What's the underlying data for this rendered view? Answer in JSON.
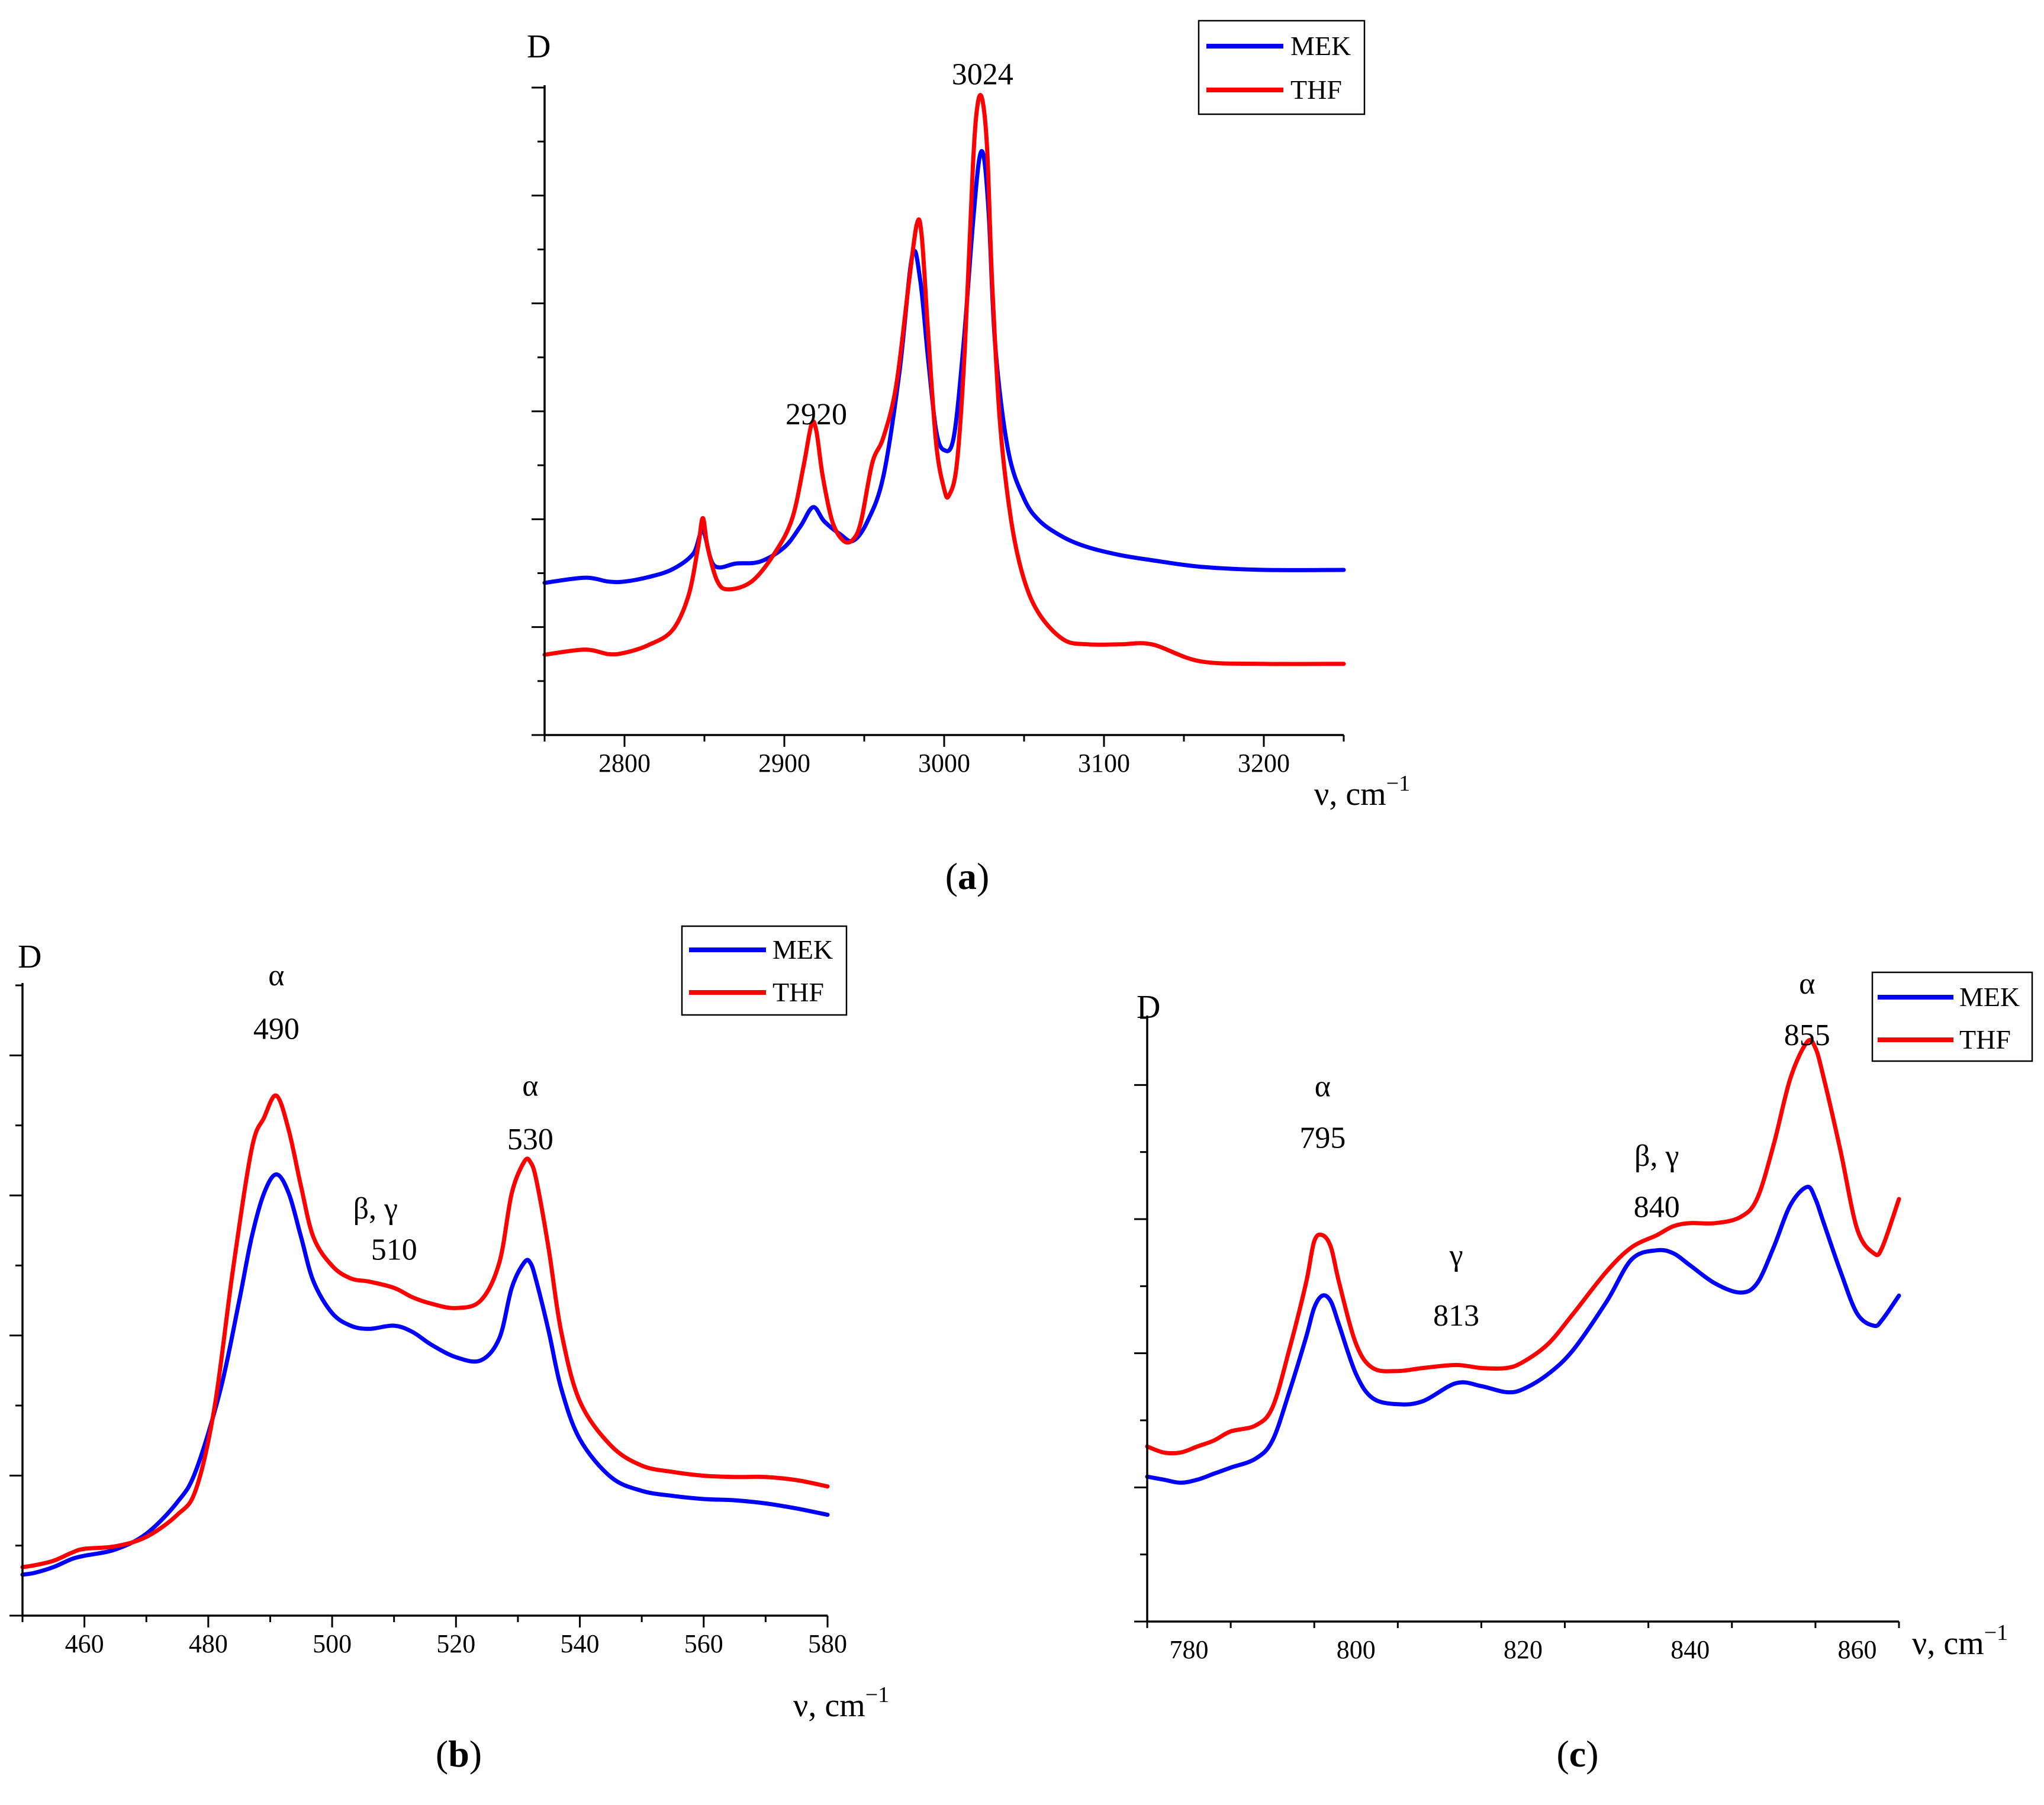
{
  "figure": {
    "caption_a": "(a)",
    "caption_b": "(b)",
    "caption_c": "(c)"
  },
  "colors": {
    "MEK": "#0000ff",
    "THF": "#ff0000",
    "axis": "#000000"
  },
  "chart_data": [
    {
      "id": "a",
      "type": "line",
      "title": "",
      "xlabel": "ν, cm",
      "xlabel_sup": "−1",
      "ylabel": "D",
      "xlim": [
        2750,
        3250
      ],
      "ylim": [
        0,
        1
      ],
      "xticks": [
        2800,
        2900,
        3000,
        3100,
        3200
      ],
      "tick_labels": [
        "2800",
        "2900",
        "3000",
        "3100",
        "3200"
      ],
      "yticks_count": 12,
      "legend": [
        "MEK",
        "THF"
      ],
      "legend_position": "top-right",
      "annotations": [
        {
          "label": "2920",
          "x": 2920,
          "y": 0.48
        },
        {
          "label": "3024",
          "x": 3024,
          "y": 1.005
        }
      ],
      "series": [
        {
          "name": "MEK",
          "x": [
            2750,
            2775,
            2790,
            2800,
            2815,
            2830,
            2843,
            2849,
            2856,
            2870,
            2885,
            2900,
            2910,
            2918,
            2925,
            2935,
            2943,
            2952,
            2962,
            2972,
            2980,
            2985,
            2990,
            2995,
            3000,
            3006,
            3012,
            3018,
            3022,
            3025,
            3028,
            3032,
            3040,
            3050,
            3060,
            3075,
            3090,
            3110,
            3130,
            3160,
            3200,
            3250
          ],
          "y": [
            0.235,
            0.243,
            0.237,
            0.237,
            0.244,
            0.256,
            0.28,
            0.315,
            0.262,
            0.265,
            0.268,
            0.29,
            0.322,
            0.352,
            0.33,
            0.31,
            0.3,
            0.33,
            0.4,
            0.56,
            0.74,
            0.703,
            0.58,
            0.47,
            0.44,
            0.46,
            0.6,
            0.79,
            0.89,
            0.89,
            0.8,
            0.6,
            0.44,
            0.365,
            0.33,
            0.305,
            0.29,
            0.278,
            0.27,
            0.26,
            0.255,
            0.255
          ]
        },
        {
          "name": "THF",
          "x": [
            2750,
            2775,
            2790,
            2800,
            2815,
            2830,
            2840,
            2846,
            2849,
            2852,
            2858,
            2865,
            2880,
            2895,
            2905,
            2912,
            2917,
            2920,
            2924,
            2930,
            2937,
            2943,
            2948,
            2955,
            2962,
            2970,
            2978,
            2983,
            2986,
            2990,
            2995,
            3000,
            3003,
            3008,
            3013,
            3018,
            3021,
            3024,
            3027,
            3030,
            3035,
            3042,
            3050,
            3060,
            3075,
            3090,
            3110,
            3130,
            3160,
            3200,
            3250
          ],
          "y": [
            0.124,
            0.132,
            0.125,
            0.127,
            0.139,
            0.162,
            0.215,
            0.29,
            0.335,
            0.29,
            0.238,
            0.225,
            0.238,
            0.285,
            0.335,
            0.415,
            0.48,
            0.47,
            0.4,
            0.33,
            0.3,
            0.302,
            0.33,
            0.42,
            0.46,
            0.54,
            0.7,
            0.79,
            0.77,
            0.62,
            0.45,
            0.38,
            0.37,
            0.42,
            0.6,
            0.88,
            0.975,
            0.98,
            0.9,
            0.7,
            0.48,
            0.33,
            0.24,
            0.185,
            0.147,
            0.14,
            0.14,
            0.14,
            0.114,
            0.11,
            0.11
          ]
        }
      ]
    },
    {
      "id": "b",
      "type": "line",
      "title": "",
      "xlabel": "ν, cm",
      "xlabel_sup": "−1",
      "ylabel": "D",
      "xlim": [
        450,
        580
      ],
      "ylim": [
        0,
        1
      ],
      "xticks": [
        460,
        480,
        500,
        520,
        540,
        560,
        580
      ],
      "tick_labels": [
        "460",
        "480",
        "500",
        "520",
        "540",
        "560",
        "580"
      ],
      "yticks_count": 9,
      "legend": [
        "MEK",
        "THF"
      ],
      "legend_position": "top-right",
      "annotations": [
        {
          "label": "α",
          "x": 491,
          "y": 1.0
        },
        {
          "label": "490",
          "x": 491,
          "y": 0.915
        },
        {
          "label": "β, γ",
          "x": 507,
          "y": 0.63
        },
        {
          "label": "510",
          "x": 510,
          "y": 0.565
        },
        {
          "label": "α",
          "x": 532,
          "y": 0.825
        },
        {
          "label": "530",
          "x": 532,
          "y": 0.74
        }
      ],
      "series": [
        {
          "name": "MEK",
          "x": [
            450,
            452,
            455,
            458,
            460,
            465,
            470,
            475,
            478,
            482,
            485,
            487,
            489,
            491,
            493,
            495,
            497,
            500,
            503,
            506,
            510,
            513,
            516,
            520,
            524,
            527,
            529,
            531,
            532,
            533,
            535,
            537,
            540,
            545,
            550,
            555,
            560,
            565,
            570,
            575,
            580
          ],
          "y": [
            0.065,
            0.068,
            0.077,
            0.09,
            0.095,
            0.105,
            0.13,
            0.18,
            0.23,
            0.36,
            0.5,
            0.6,
            0.67,
            0.7,
            0.67,
            0.6,
            0.53,
            0.48,
            0.46,
            0.455,
            0.46,
            0.45,
            0.43,
            0.41,
            0.405,
            0.44,
            0.52,
            0.56,
            0.56,
            0.53,
            0.45,
            0.36,
            0.28,
            0.22,
            0.198,
            0.19,
            0.185,
            0.183,
            0.178,
            0.17,
            0.16
          ]
        },
        {
          "name": "THF",
          "x": [
            450,
            452,
            455,
            458,
            460,
            465,
            470,
            475,
            478,
            481,
            484,
            487,
            489,
            491,
            493,
            495,
            497,
            500,
            503,
            506,
            510,
            513,
            516,
            520,
            524,
            527,
            529,
            531,
            532,
            533,
            535,
            537,
            540,
            545,
            550,
            555,
            560,
            565,
            570,
            575,
            580
          ],
          "y": [
            0.077,
            0.08,
            0.087,
            0.1,
            0.106,
            0.11,
            0.125,
            0.16,
            0.2,
            0.33,
            0.55,
            0.74,
            0.79,
            0.825,
            0.77,
            0.68,
            0.6,
            0.555,
            0.535,
            0.53,
            0.52,
            0.505,
            0.495,
            0.488,
            0.5,
            0.56,
            0.67,
            0.72,
            0.72,
            0.69,
            0.58,
            0.45,
            0.34,
            0.27,
            0.238,
            0.228,
            0.222,
            0.22,
            0.22,
            0.215,
            0.205
          ]
        }
      ]
    },
    {
      "id": "c",
      "type": "line",
      "title": "",
      "xlabel": "ν, cm",
      "xlabel_sup": "−1",
      "ylabel": "D",
      "xlim": [
        775,
        865
      ],
      "ylim": [
        0,
        1
      ],
      "xticks": [
        780,
        800,
        820,
        840,
        860
      ],
      "tick_labels": [
        "780",
        "800",
        "820",
        "840",
        "860"
      ],
      "yticks_count": 9,
      "legend": [
        "MEK",
        "THF"
      ],
      "legend_position": "top-right",
      "annotations": [
        {
          "label": "α",
          "x": 796,
          "y": 0.87
        },
        {
          "label": "795",
          "x": 796,
          "y": 0.785
        },
        {
          "label": "γ",
          "x": 812,
          "y": 0.59
        },
        {
          "label": "813",
          "x": 812,
          "y": 0.49
        },
        {
          "label": "β, γ",
          "x": 836,
          "y": 0.755
        },
        {
          "label": "840",
          "x": 836,
          "y": 0.67
        },
        {
          "label": "α",
          "x": 854,
          "y": 1.04
        },
        {
          "label": "855",
          "x": 854,
          "y": 0.955
        }
      ],
      "series": [
        {
          "name": "MEK",
          "x": [
            775,
            777,
            779,
            781,
            783,
            785,
            788,
            790,
            792,
            794,
            795,
            796,
            797,
            798,
            800,
            802,
            805,
            808,
            812,
            815,
            818,
            820,
            823,
            826,
            830,
            833,
            836,
            838,
            840,
            843,
            846,
            848,
            850,
            852,
            854,
            855,
            856,
            858,
            860,
            862,
            863,
            865
          ],
          "y": [
            0.24,
            0.235,
            0.23,
            0.235,
            0.245,
            0.255,
            0.27,
            0.3,
            0.38,
            0.47,
            0.52,
            0.54,
            0.53,
            0.49,
            0.41,
            0.37,
            0.36,
            0.365,
            0.395,
            0.39,
            0.38,
            0.385,
            0.41,
            0.45,
            0.53,
            0.6,
            0.615,
            0.61,
            0.59,
            0.56,
            0.545,
            0.56,
            0.62,
            0.69,
            0.72,
            0.7,
            0.66,
            0.58,
            0.51,
            0.49,
            0.5,
            0.54
          ]
        },
        {
          "name": "THF",
          "x": [
            775,
            777,
            779,
            781,
            783,
            785,
            788,
            790,
            792,
            794,
            795,
            796,
            797,
            798,
            800,
            802,
            805,
            808,
            812,
            815,
            818,
            820,
            823,
            826,
            830,
            833,
            836,
            838,
            840,
            843,
            846,
            848,
            850,
            852,
            854,
            855,
            856,
            858,
            860,
            862,
            863,
            865
          ],
          "y": [
            0.29,
            0.28,
            0.28,
            0.29,
            0.3,
            0.315,
            0.325,
            0.355,
            0.45,
            0.56,
            0.63,
            0.64,
            0.62,
            0.56,
            0.46,
            0.42,
            0.415,
            0.42,
            0.425,
            0.42,
            0.42,
            0.43,
            0.46,
            0.51,
            0.58,
            0.62,
            0.64,
            0.655,
            0.66,
            0.66,
            0.67,
            0.7,
            0.79,
            0.9,
            0.96,
            0.95,
            0.9,
            0.78,
            0.65,
            0.61,
            0.62,
            0.7
          ]
        }
      ]
    }
  ]
}
